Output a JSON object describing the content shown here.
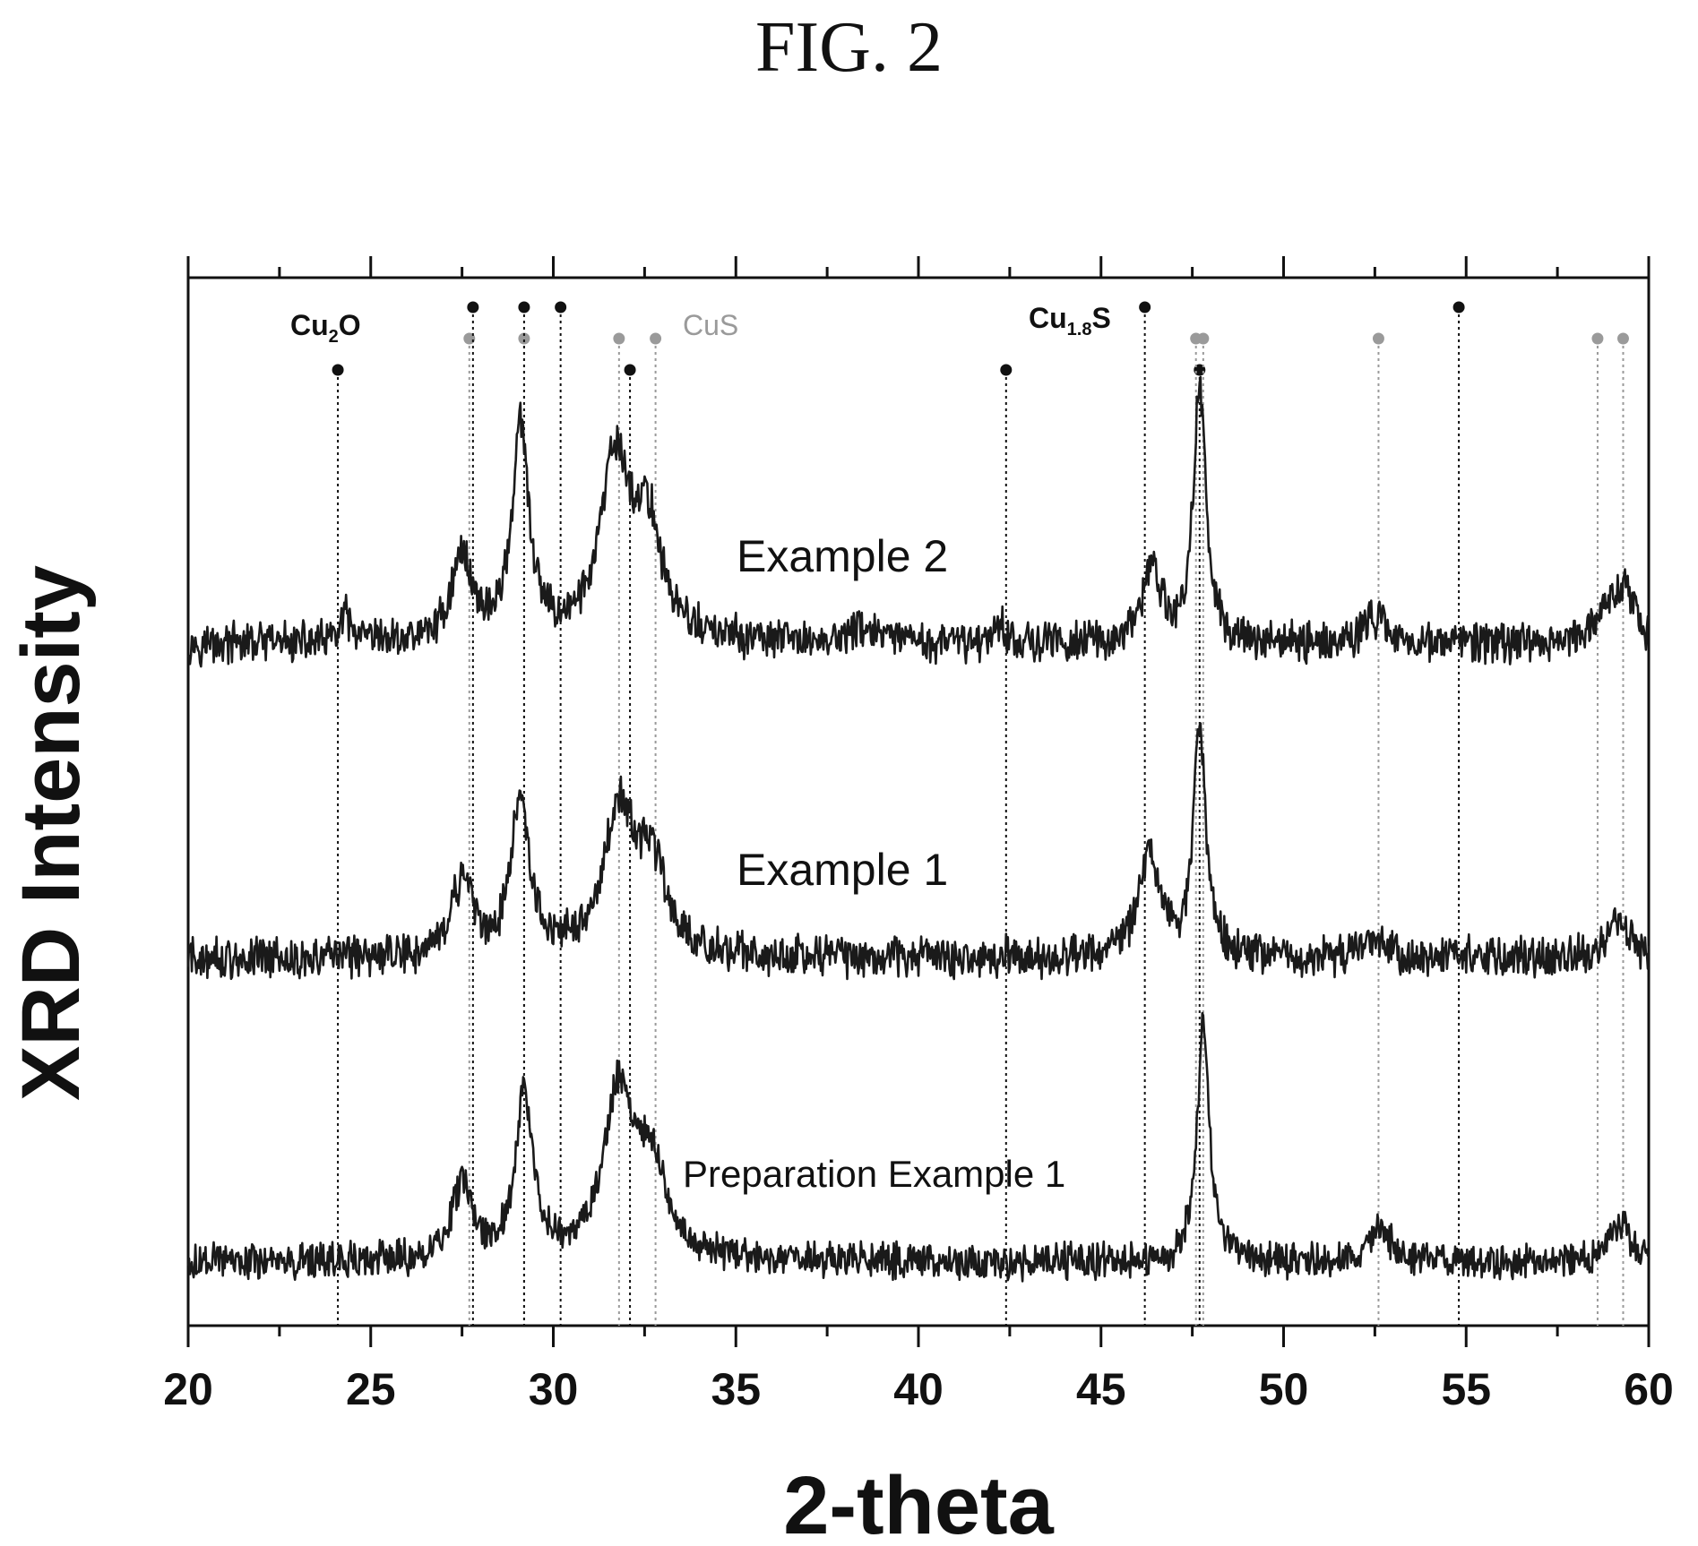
{
  "figure_title": "FIG. 2",
  "chart_data": {
    "type": "line",
    "title": "",
    "xlabel": "2-theta",
    "ylabel": "XRD Intensity",
    "xlim": [
      20,
      60
    ],
    "ylim": [
      0,
      100
    ],
    "x_ticks": [
      20,
      25,
      30,
      35,
      40,
      45,
      50,
      55,
      60
    ],
    "grid": false,
    "y_axis_values_shown": false,
    "series": [
      {
        "name": "Example 2",
        "baseline": 65,
        "noise": 1.6,
        "peaks": [
          {
            "x": 24.3,
            "h": 2.5,
            "w": 0.15
          },
          {
            "x": 27.5,
            "h": 8,
            "w": 0.35
          },
          {
            "x": 29.1,
            "h": 20,
            "w": 0.28
          },
          {
            "x": 31.7,
            "h": 17,
            "w": 0.5
          },
          {
            "x": 32.6,
            "h": 10,
            "w": 0.45
          },
          {
            "x": 38.5,
            "h": 1.5,
            "w": 0.4
          },
          {
            "x": 42.2,
            "h": 2,
            "w": 0.2
          },
          {
            "x": 46.4,
            "h": 7,
            "w": 0.3
          },
          {
            "x": 47.7,
            "h": 25,
            "w": 0.2
          },
          {
            "x": 52.5,
            "h": 2.5,
            "w": 0.4
          },
          {
            "x": 58.9,
            "h": 3.5,
            "w": 0.4
          },
          {
            "x": 59.4,
            "h": 4,
            "w": 0.3
          }
        ]
      },
      {
        "name": "Example 1",
        "baseline": 35,
        "noise": 1.6,
        "peaks": [
          {
            "x": 27.5,
            "h": 7,
            "w": 0.35
          },
          {
            "x": 29.1,
            "h": 16,
            "w": 0.28
          },
          {
            "x": 31.8,
            "h": 14,
            "w": 0.5
          },
          {
            "x": 32.7,
            "h": 8,
            "w": 0.45
          },
          {
            "x": 46.3,
            "h": 10,
            "w": 0.35
          },
          {
            "x": 47.7,
            "h": 22,
            "w": 0.2
          },
          {
            "x": 52.5,
            "h": 2,
            "w": 0.4
          },
          {
            "x": 59.2,
            "h": 3.5,
            "w": 0.35
          }
        ]
      },
      {
        "name": "Preparation Example 1",
        "baseline": 6,
        "noise": 1.4,
        "peaks": [
          {
            "x": 27.5,
            "h": 7,
            "w": 0.35
          },
          {
            "x": 29.2,
            "h": 16,
            "w": 0.28
          },
          {
            "x": 31.8,
            "h": 16,
            "w": 0.5
          },
          {
            "x": 32.7,
            "h": 8,
            "w": 0.45
          },
          {
            "x": 47.8,
            "h": 23,
            "w": 0.2
          },
          {
            "x": 52.7,
            "h": 3,
            "w": 0.35
          },
          {
            "x": 59.2,
            "h": 4,
            "w": 0.35
          }
        ]
      }
    ],
    "reference_phases": [
      {
        "name": "Cu2O",
        "label_main": "Cu",
        "label_sub": "2",
        "label_tail": "O",
        "marker_color": "#111111",
        "label_color": "#111111",
        "positions": [
          24.1,
          32.1,
          42.4,
          47.7
        ]
      },
      {
        "name": "CuS",
        "label_main": "CuS",
        "label_sub": "",
        "label_tail": "",
        "marker_color": "#9a9a9a",
        "label_color": "#9a9a9a",
        "positions": [
          27.7,
          29.2,
          31.8,
          32.8,
          47.6,
          47.8,
          52.6,
          58.6,
          59.3
        ]
      },
      {
        "name": "Cu1.8S",
        "label_main": "Cu",
        "label_sub": "1.8",
        "label_tail": "S",
        "marker_color": "#111111",
        "label_color": "#111111",
        "positions": [
          27.8,
          29.2,
          30.2,
          46.2,
          54.8
        ]
      }
    ],
    "annotations": [
      "Example 2",
      "Example 1",
      "Preparation Example 1",
      "Cu2O",
      "CuS",
      "Cu1.8S"
    ]
  }
}
